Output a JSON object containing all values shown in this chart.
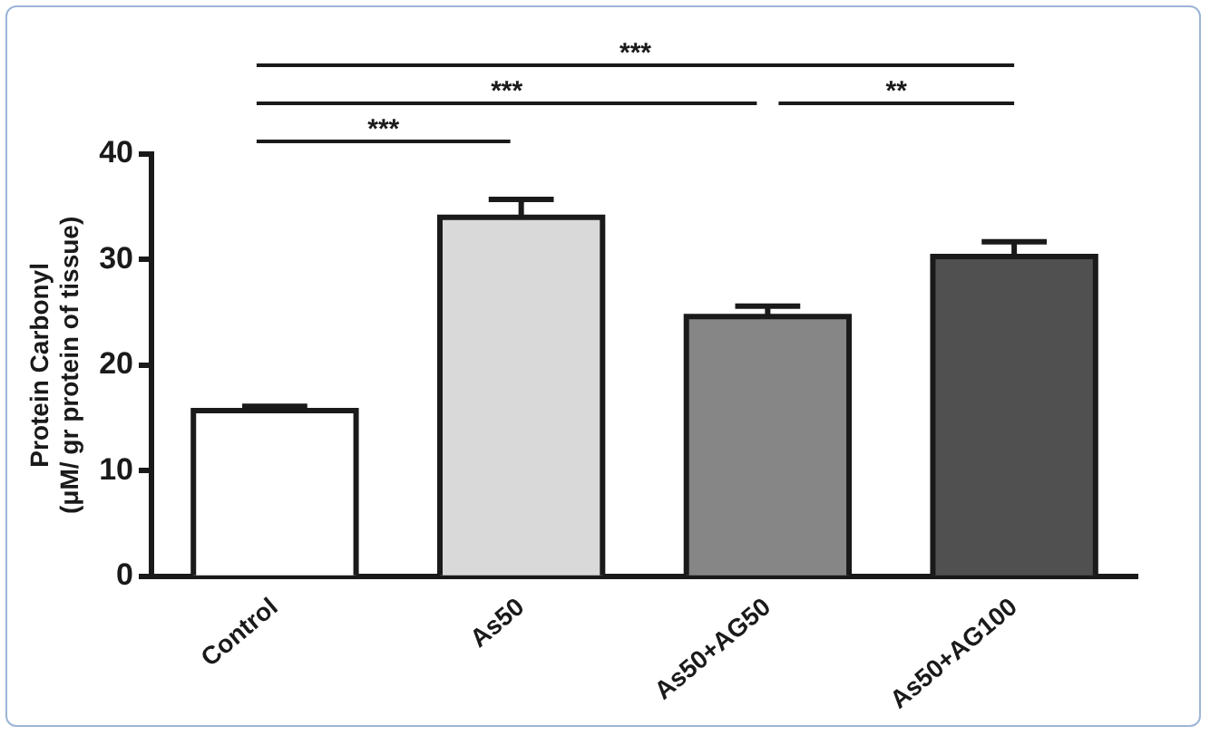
{
  "chart_data": {
    "type": "bar",
    "ylabel": "Protein Carbonyl\n(μM/ gr protein of tissue)",
    "categories": [
      "Control",
      "As50",
      "As50+AG50",
      "As50+AG100"
    ],
    "values": [
      15.7,
      34,
      24.6,
      30.3
    ],
    "colors": [
      "#ffffff",
      "#d9d9d9",
      "#868686",
      "#505050"
    ],
    "errors": [
      [
        15.7,
        16.1
      ],
      [
        34,
        35.7
      ],
      [
        24.6,
        25.6
      ],
      [
        30.3,
        31.7
      ]
    ],
    "ylim": [
      0,
      40
    ],
    "yticks": [
      0,
      10,
      20,
      30,
      40
    ],
    "grid": false,
    "legend": false,
    "annotations": [
      "***",
      "***",
      "**",
      "***"
    ]
  }
}
